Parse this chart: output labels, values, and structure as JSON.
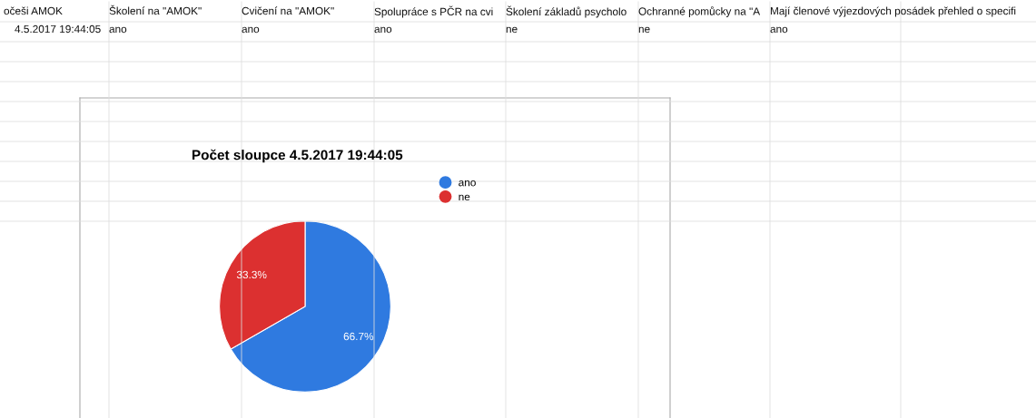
{
  "chart_data": {
    "type": "pie",
    "title": "Počet sloupce 4.5.2017 19:44:05",
    "categories": [
      "ano",
      "ne"
    ],
    "values": [
      66.7,
      33.3
    ],
    "colors": [
      "#2f7ae0",
      "#dc3030"
    ],
    "value_labels": [
      "66.7%",
      "33.3%"
    ],
    "legend": "top right",
    "annotations": [
      "očeši AMOK",
      "Školení na \"AMOK\"",
      "Cvičení na \"AMOK\"",
      "Spolupráce s PČR na cvi",
      "Školení základů psycholo",
      "Ochranné pomůcky na \"A",
      "Mají členové výjezdových posádek přehled o specifi",
      "4.5.2017 19:44:05",
      "ano",
      "ano",
      "ano",
      "ne",
      "ne",
      "ano"
    ]
  }
}
